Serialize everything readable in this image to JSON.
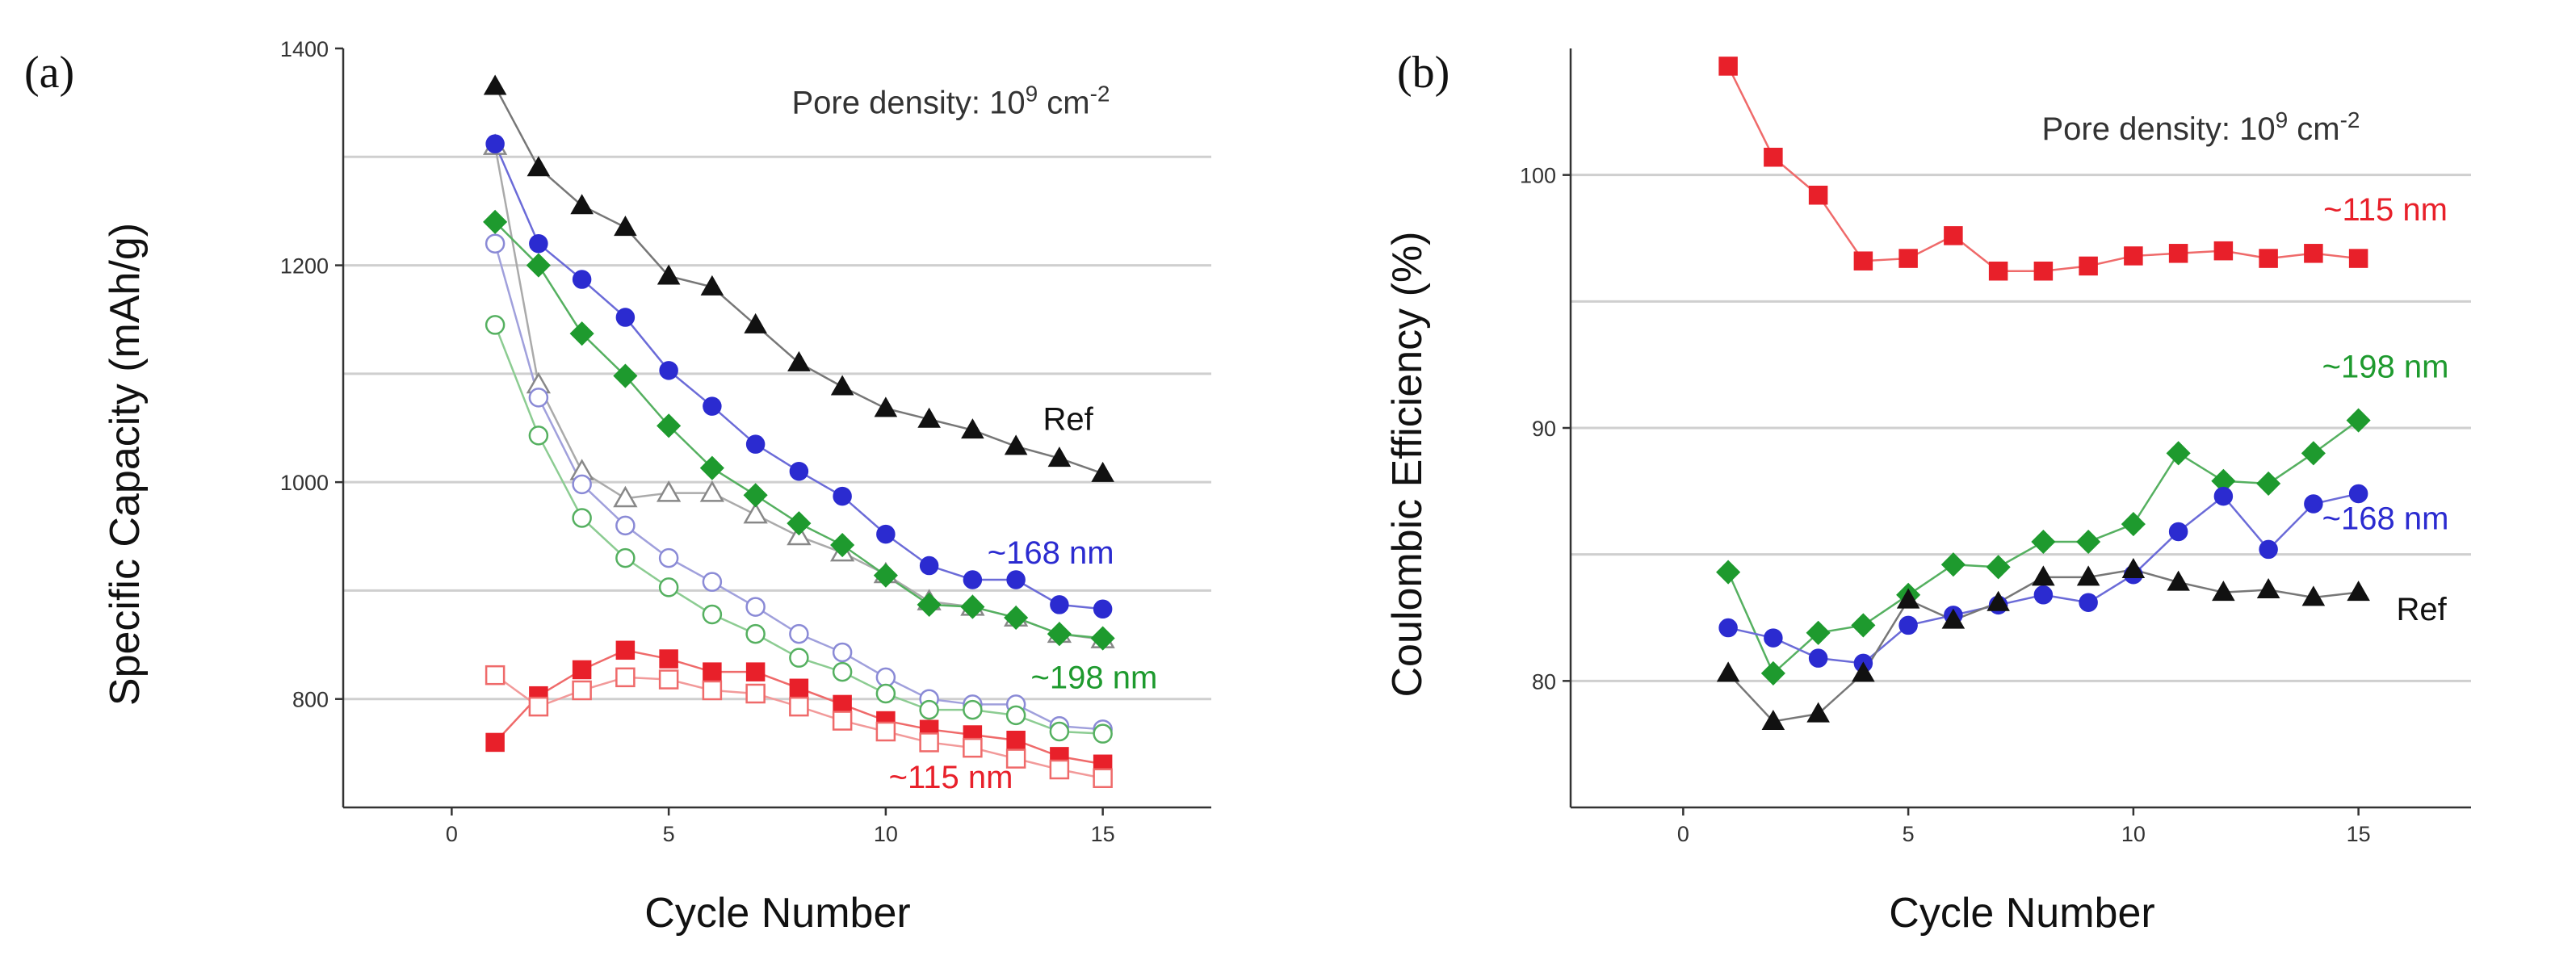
{
  "chart_data": [
    {
      "type": "line",
      "panel_label": "(a)",
      "title": "",
      "xlabel": "Cycle Number",
      "ylabel": "Specific Capacity (mAh/g)",
      "xlim": [
        -2.5,
        17.5
      ],
      "ylim": [
        700,
        1400
      ],
      "xticks": [
        0,
        5,
        10,
        15
      ],
      "yticks": [
        800,
        1000,
        1200,
        1400
      ],
      "gridlines_y": [
        800,
        900,
        1000,
        1100,
        1200,
        1300
      ],
      "annotation": {
        "text": "Pore density: 10",
        "sup": "9",
        "unit": " cm",
        "unit_sup": "-2",
        "x": 11.5,
        "y": 1340
      },
      "series_labels": [
        {
          "text": "Ref",
          "color": "#111111",
          "x": 14.2,
          "y": 1048
        },
        {
          "text": "~168 nm",
          "color": "#2b2bd0",
          "x": 13.8,
          "y": 925
        },
        {
          "text": "~198 nm",
          "color": "#1e9a2e",
          "x": 14.8,
          "y": 810
        },
        {
          "text": "~115 nm",
          "color": "#e8202a",
          "x": 11.5,
          "y": 718
        }
      ],
      "x": [
        1,
        2,
        3,
        4,
        5,
        6,
        7,
        8,
        9,
        10,
        11,
        12,
        13,
        14,
        15
      ],
      "series": [
        {
          "name": "Ref",
          "marker": "triangle",
          "filled": true,
          "color": "#111111",
          "line": "#777777",
          "values": [
            1365,
            1290,
            1255,
            1235,
            1190,
            1180,
            1145,
            1110,
            1088,
            1068,
            1058,
            1048,
            1033,
            1022,
            1008
          ]
        },
        {
          "name": "Ref (open)",
          "marker": "triangle",
          "filled": false,
          "color": "#888888",
          "line": "#aaaaaa",
          "values": [
            1310,
            1090,
            1010,
            985,
            990,
            990,
            970,
            950,
            935,
            915,
            890,
            885,
            875,
            860,
            855
          ]
        },
        {
          "name": "~168 nm",
          "marker": "circle",
          "filled": true,
          "color": "#2b2bd0",
          "line": "#6b6bd8",
          "values": [
            1312,
            1220,
            1187,
            1152,
            1103,
            1070,
            1035,
            1010,
            987,
            952,
            923,
            910,
            910,
            887,
            883
          ]
        },
        {
          "name": "~168 nm (open)",
          "marker": "circle",
          "filled": false,
          "color": "#8a8ad6",
          "line": "#a0a0dc",
          "values": [
            1220,
            1078,
            998,
            960,
            930,
            908,
            885,
            860,
            843,
            820,
            800,
            795,
            795,
            775,
            772
          ]
        },
        {
          "name": "~198 nm",
          "marker": "diamond",
          "filled": true,
          "color": "#1e9a2e",
          "line": "#55b060",
          "values": [
            1240,
            1200,
            1137,
            1098,
            1052,
            1013,
            988,
            962,
            942,
            914,
            887,
            885,
            875,
            860,
            856
          ]
        },
        {
          "name": "~198 nm (open)",
          "marker": "circle",
          "filled": false,
          "color": "#55b060",
          "line": "#8ccc92",
          "values": [
            1145,
            1043,
            967,
            930,
            903,
            878,
            860,
            838,
            825,
            805,
            790,
            790,
            785,
            770,
            768
          ]
        },
        {
          "name": "~115 nm",
          "marker": "square",
          "filled": true,
          "color": "#e8202a",
          "line": "#ef6a6a",
          "values": [
            760,
            803,
            827,
            845,
            837,
            825,
            825,
            810,
            795,
            780,
            772,
            767,
            762,
            747,
            740
          ]
        },
        {
          "name": "~115 nm (open)",
          "marker": "square",
          "filled": false,
          "color": "#ef6a6a",
          "line": "#f29a9a",
          "values": [
            822,
            793,
            808,
            820,
            818,
            808,
            805,
            793,
            780,
            770,
            760,
            755,
            745,
            735,
            727
          ]
        }
      ]
    },
    {
      "type": "line",
      "panel_label": "(b)",
      "title": "",
      "xlabel": "Cycle Number",
      "ylabel": "Coulombic Efficiency (%)",
      "xlim": [
        -2.5,
        17.5
      ],
      "ylim": [
        75,
        105
      ],
      "xticks": [
        0,
        5,
        10,
        15
      ],
      "yticks": [
        80,
        90,
        100
      ],
      "gridlines_y": [
        80,
        85,
        90,
        95,
        100
      ],
      "annotation": {
        "text": "Pore density: 10",
        "sup": "9",
        "unit": " cm",
        "unit_sup": "-2",
        "x": 11.5,
        "y": 101.4
      },
      "series_labels": [
        {
          "text": "~115 nm",
          "color": "#e8202a",
          "x": 15.6,
          "y": 98.2
        },
        {
          "text": "~198 nm",
          "color": "#1e9a2e",
          "x": 15.6,
          "y": 92.0
        },
        {
          "text": "~168 nm",
          "color": "#2b2bd0",
          "x": 15.6,
          "y": 86.0
        },
        {
          "text": "Ref",
          "color": "#111111",
          "x": 16.4,
          "y": 82.4
        }
      ],
      "x": [
        1,
        2,
        3,
        4,
        5,
        6,
        7,
        8,
        9,
        10,
        11,
        12,
        13,
        14,
        15
      ],
      "series": [
        {
          "name": "~115 nm",
          "marker": "square",
          "filled": true,
          "color": "#e8202a",
          "line": "#ef6a6a",
          "values": [
            104.3,
            100.7,
            99.2,
            96.6,
            96.7,
            97.6,
            96.2,
            96.2,
            96.4,
            96.8,
            96.9,
            97.0,
            96.7,
            96.9,
            96.7
          ]
        },
        {
          "name": "~198 nm",
          "marker": "diamond",
          "filled": true,
          "color": "#1e9a2e",
          "line": "#55b060",
          "values": [
            84.3,
            80.3,
            81.9,
            82.2,
            83.4,
            84.6,
            84.5,
            85.5,
            85.5,
            86.2,
            89.0,
            87.9,
            87.8,
            89.0,
            90.3
          ]
        },
        {
          "name": "~168 nm",
          "marker": "circle",
          "filled": true,
          "color": "#2b2bd0",
          "line": "#6b6bd8",
          "values": [
            82.1,
            81.7,
            80.9,
            80.7,
            82.2,
            82.6,
            83.0,
            83.4,
            83.1,
            84.2,
            85.9,
            87.3,
            85.2,
            87.0,
            87.4
          ]
        },
        {
          "name": "Ref",
          "marker": "triangle",
          "filled": true,
          "color": "#111111",
          "line": "#777777",
          "values": [
            80.3,
            78.4,
            78.7,
            80.3,
            83.2,
            82.4,
            83.1,
            84.1,
            84.1,
            84.4,
            83.9,
            83.5,
            83.6,
            83.3,
            83.5
          ]
        }
      ]
    }
  ]
}
